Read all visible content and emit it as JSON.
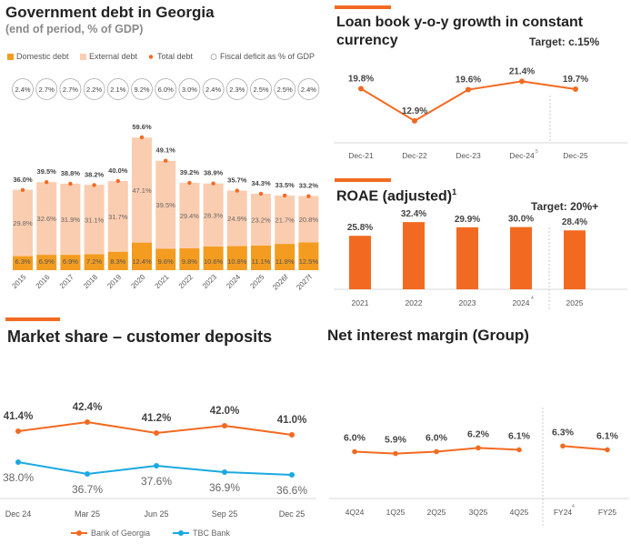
{
  "colors": {
    "orange": "#f26a21",
    "domestic": "#f39c1f",
    "external": "#fbcdb0",
    "blue": "#1aa9e1",
    "grid": "#d9d9d9"
  },
  "chart_data": [
    {
      "id": "govdebt",
      "type": "bar",
      "title": "Government debt in Georgia",
      "subtitle": "(end of period, % of GDP)",
      "legend": [
        "Domestic debt",
        "External debt",
        "Total debt",
        "Fiscal deficit as % of GDP"
      ],
      "categories": [
        "2015",
        "2016",
        "2017",
        "2018",
        "2019",
        "2020",
        "2021",
        "2022",
        "2023",
        "2024",
        "2025",
        "2026f",
        "2027f"
      ],
      "fiscal_deficit_labels": [
        "2.4%",
        "2.7%",
        "2.7%",
        "2.2%",
        "2.1%",
        "9.2%",
        "6.0%",
        "3.0%",
        "2.4%",
        "2.3%",
        "2.5%",
        "2.5%",
        "2.4%"
      ],
      "series": [
        {
          "name": "Domestic debt",
          "values": [
            6.3,
            6.9,
            6.9,
            7.2,
            8.3,
            12.4,
            9.6,
            9.8,
            10.6,
            10.8,
            11.1,
            11.8,
            12.5
          ],
          "labels": [
            "6.3%",
            "6.9%",
            "6.9%",
            "7.2%",
            "8.3%",
            "12.4%",
            "9.6%",
            "9.8%",
            "10.6%",
            "10.8%",
            "11.1%",
            "11.8%",
            "12.5%"
          ]
        },
        {
          "name": "External debt",
          "values": [
            29.8,
            32.6,
            31.9,
            31.1,
            31.7,
            47.1,
            39.5,
            29.4,
            28.3,
            24.9,
            23.2,
            21.7,
            20.8
          ],
          "labels": [
            "29.8%",
            "32.6%",
            "31.9%",
            "31.1%",
            "31.7%",
            "47.1%",
            "39.5%",
            "29.4%",
            "28.3%",
            "24.9%",
            "23.2%",
            "21.7%",
            "20.8%"
          ]
        },
        {
          "name": "Total debt",
          "values": [
            36.0,
            39.5,
            38.8,
            38.2,
            40.0,
            59.6,
            49.1,
            39.2,
            38.9,
            35.7,
            34.3,
            33.5,
            33.2
          ],
          "labels": [
            "36.0%",
            "39.5%",
            "38.8%",
            "38.2%",
            "40.0%",
            "59.6%",
            "49.1%",
            "39.2%",
            "38.9%",
            "35.7%",
            "34.3%",
            "33.5%",
            "33.2%"
          ]
        }
      ],
      "ylim": [
        0,
        65
      ]
    },
    {
      "id": "loan",
      "type": "line",
      "title": "Loan book y-o-y growth in constant currency",
      "title_lines": [
        "Loan book y-o-y growth in constant",
        "currency"
      ],
      "target": "Target: c.15%",
      "categories": [
        "Dec-21",
        "Dec-22",
        "Dec-23",
        "Dec-24",
        "Dec-25"
      ],
      "footnote": "5",
      "values": [
        19.8,
        12.9,
        19.6,
        21.4,
        19.7
      ],
      "labels": [
        "19.8%",
        "12.9%",
        "19.6%",
        "21.4%",
        "19.7%"
      ],
      "ylim": [
        8,
        24
      ]
    },
    {
      "id": "roae",
      "type": "bar",
      "title": "ROAE (adjusted)",
      "title_sup": "1",
      "target": "Target: 20%+",
      "categories": [
        "2021",
        "2022",
        "2023",
        "2024",
        "2025"
      ],
      "footnote": "4",
      "values": [
        25.8,
        32.4,
        29.9,
        30.0,
        28.4
      ],
      "labels": [
        "25.8%",
        "32.4%",
        "29.9%",
        "30.0%",
        "28.4%"
      ],
      "ylim": [
        0,
        36
      ]
    },
    {
      "id": "market",
      "type": "line",
      "title": "Market share – customer deposits",
      "categories": [
        "Dec 24",
        "Mar 25",
        "Jun 25",
        "Sep 25",
        "Dec 25"
      ],
      "series": [
        {
          "name": "Bank of Georgia",
          "values": [
            41.4,
            42.4,
            41.2,
            42.0,
            41.0
          ],
          "labels": [
            "41.4%",
            "42.4%",
            "41.2%",
            "42.0%",
            "41.0%"
          ]
        },
        {
          "name": "TBC Bank",
          "values": [
            38.0,
            36.7,
            37.6,
            36.9,
            36.6
          ],
          "labels": [
            "38.0%",
            "36.7%",
            "37.6%",
            "36.9%",
            "36.6%"
          ]
        }
      ],
      "ylim": [
        34,
        46
      ]
    },
    {
      "id": "nim",
      "type": "line",
      "title": "Net interest margin (Group)",
      "categories": [
        "4Q24",
        "1Q25",
        "2Q25",
        "3Q25",
        "4Q25",
        "FY24",
        "FY25"
      ],
      "footnote": "4",
      "quarterly": [
        6.0,
        5.9,
        6.0,
        6.2,
        6.1
      ],
      "quarterly_labels": [
        "6.0%",
        "5.9%",
        "6.0%",
        "6.2%",
        "6.1%"
      ],
      "annual": [
        6.3,
        6.1
      ],
      "annual_labels": [
        "6.3%",
        "6.1%"
      ],
      "ylim": [
        4,
        8
      ]
    }
  ]
}
